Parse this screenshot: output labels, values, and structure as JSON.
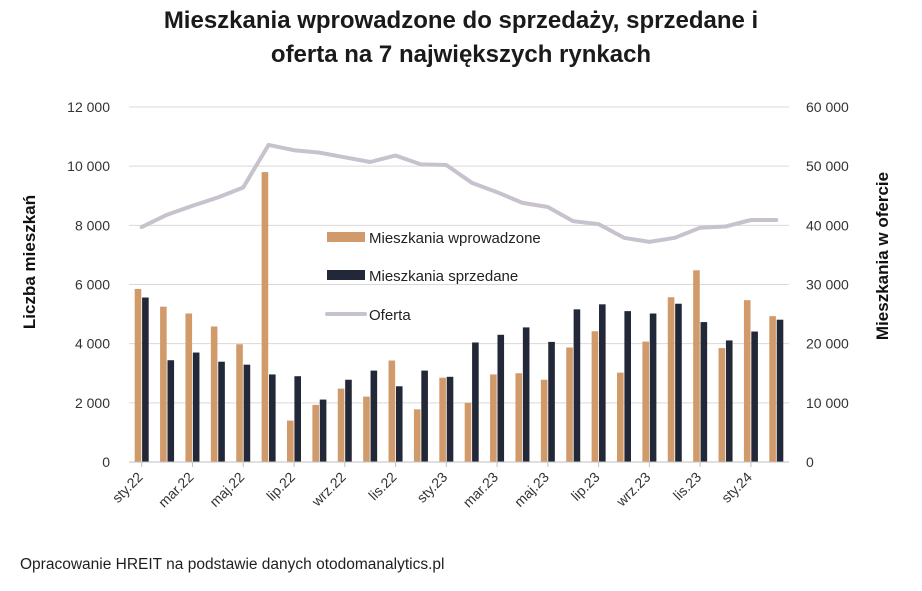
{
  "chart_data": {
    "type": "bar",
    "title_line1": "Mieszkania wprowadzone do sprzedaży, sprzedane i",
    "title_line2": "oferta na 7 największych rynkach",
    "ylabel": "Liczba mieszkań",
    "ylabel_right": "Mieszkania w ofercie",
    "ylim": [
      0,
      12000
    ],
    "ylim_right": [
      0,
      60000
    ],
    "yticks": [
      "0",
      "2 000",
      "4 000",
      "6 000",
      "8 000",
      "10 000",
      "12 000"
    ],
    "yticks_right": [
      "0",
      "10 000",
      "20 000",
      "30 000",
      "40 000",
      "50 000",
      "60 000"
    ],
    "x_tick_labels": [
      "sty.22",
      "mar.22",
      "maj.22",
      "lip.22",
      "wrz.22",
      "lis.22",
      "sty.23",
      "mar.23",
      "maj.23",
      "lip.23",
      "wrz.23",
      "lis.23",
      "sty.24"
    ],
    "grid": true,
    "legend_position": "center",
    "categories": [
      "sty.22",
      "lut.22",
      "mar.22",
      "kwi.22",
      "maj.22",
      "cze.22",
      "lip.22",
      "sie.22",
      "wrz.22",
      "paź.22",
      "lis.22",
      "gru.22",
      "sty.23",
      "lut.23",
      "mar.23",
      "kwi.23",
      "maj.23",
      "cze.23",
      "lip.23",
      "sie.23",
      "wrz.23",
      "paź.23",
      "lis.23",
      "gru.23",
      "sty.24",
      "lut.24"
    ],
    "series": [
      {
        "name": "Mieszkania wprowadzone",
        "type": "bar",
        "axis": "left",
        "color": "#d19a6a",
        "values": [
          5850,
          5250,
          5020,
          4580,
          3980,
          9800,
          1400,
          1930,
          2480,
          2210,
          3430,
          1780,
          2850,
          2000,
          2960,
          3000,
          2780,
          3870,
          4420,
          3020,
          4070,
          5570,
          6480,
          3850,
          5470,
          4930
        ]
      },
      {
        "name": "Mieszkania sprzedane",
        "type": "bar",
        "axis": "left",
        "color": "#232838",
        "values": [
          5560,
          3440,
          3700,
          3390,
          3290,
          2960,
          2900,
          2110,
          2780,
          3090,
          2560,
          3090,
          2880,
          4040,
          4300,
          4550,
          4060,
          5160,
          5330,
          5100,
          5020,
          5350,
          4730,
          4110,
          4410,
          4810
        ]
      },
      {
        "name": "Oferta",
        "type": "line",
        "axis": "right",
        "color": "#c7c2cd",
        "values": [
          39700,
          41800,
          43300,
          44700,
          46400,
          53600,
          52700,
          52300,
          51500,
          50700,
          51800,
          50300,
          50200,
          47200,
          45600,
          43800,
          43100,
          40700,
          40200,
          37900,
          37200,
          37900,
          39600,
          39800,
          40900,
          40900
        ]
      }
    ]
  },
  "footer": {
    "source": "Opracowanie HREIT na podstawie danych otodomanalytics.pl"
  }
}
